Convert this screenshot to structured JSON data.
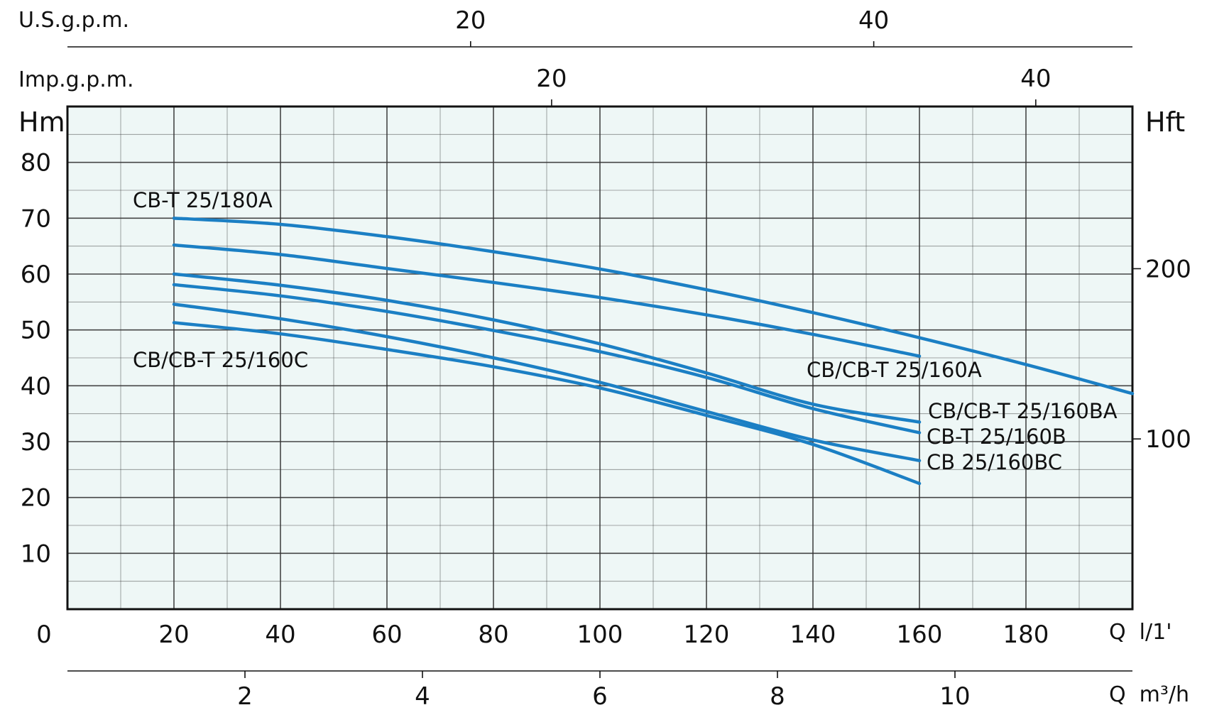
{
  "chart_data": {
    "type": "line",
    "title": "",
    "x_axis_main": {
      "unit": "Q  l/1'",
      "origin_label": "0",
      "range": [
        0,
        200
      ],
      "ticks": [
        20,
        40,
        60,
        80,
        100,
        120,
        140,
        160,
        180
      ],
      "minor_grid_step": 10
    },
    "x_axis_m3h": {
      "unit": "Q  m³/h",
      "ticks": [
        2,
        4,
        6,
        8,
        10
      ]
    },
    "x_axis_usgpm": {
      "unit": "U.S.g.p.m.",
      "ticks": [
        20,
        40
      ]
    },
    "x_axis_impgpm": {
      "unit": "Imp.g.p.m.",
      "ticks": [
        20,
        40
      ]
    },
    "y_axis_left": {
      "label": "Hm",
      "range": [
        0,
        90
      ],
      "ticks": [
        10,
        20,
        30,
        40,
        50,
        60,
        70,
        80
      ]
    },
    "y_axis_right": {
      "label": "Hft",
      "ticks": [
        100,
        200
      ]
    },
    "grid": true,
    "labels": {
      "cbt180a": "CB-T 25/180A",
      "cb160c": "CB/CB-T 25/160C",
      "cb160a": "CB/CB-T 25/160A",
      "cb160ba": "CB/CB-T 25/160BA",
      "cbt160b": "CB-T 25/160B",
      "cb160bc": "CB 25/160BC"
    },
    "series": [
      {
        "id": "s1",
        "x": [
          20,
          40,
          60,
          80,
          100,
          120,
          140,
          160,
          180,
          200
        ],
        "y": [
          70,
          68.9,
          66.7,
          64,
          60.9,
          57.2,
          53.1,
          48.6,
          43.8,
          38.6
        ]
      },
      {
        "id": "s2",
        "x": [
          20,
          40,
          60,
          80,
          100,
          120,
          140,
          160
        ],
        "y": [
          65.2,
          63.5,
          61,
          58.5,
          55.8,
          52.7,
          49.2,
          45.3
        ]
      },
      {
        "id": "s3",
        "x": [
          20,
          40,
          60,
          80,
          100,
          120,
          140,
          160
        ],
        "y": [
          60,
          58,
          55.3,
          51.8,
          47.5,
          42.3,
          36.7,
          33.5
        ]
      },
      {
        "id": "s4",
        "x": [
          20,
          40,
          60,
          80,
          100,
          120,
          140,
          160
        ],
        "y": [
          58.1,
          56.1,
          53.3,
          49.9,
          46.1,
          41.5,
          35.9,
          31.6
        ]
      },
      {
        "id": "s5",
        "x": [
          20,
          40,
          60,
          80,
          100,
          120,
          140,
          160
        ],
        "y": [
          54.6,
          52,
          48.8,
          45,
          40.6,
          35.4,
          30.3,
          26.6
        ]
      },
      {
        "id": "s6",
        "x": [
          20,
          40,
          60,
          80,
          100,
          120,
          140,
          160
        ],
        "y": [
          51.3,
          49.3,
          46.5,
          43.4,
          39.6,
          34.7,
          29.5,
          22.5
        ]
      }
    ],
    "colors": {
      "curve": "#1b7fc4",
      "plot_bg": "#eef7f6",
      "grid": "#333333",
      "text": "#111111"
    }
  }
}
